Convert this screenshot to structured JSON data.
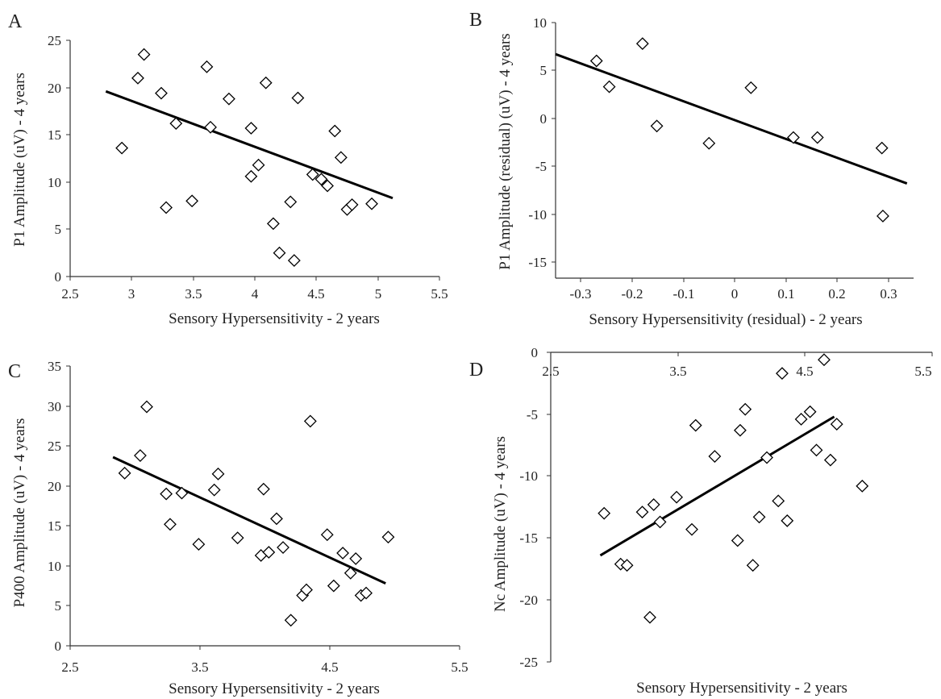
{
  "chart_data": [
    {
      "panel": "A",
      "type": "scatter",
      "xlabel": "Sensory Hypersensitivity - 2 years",
      "ylabel": "P1 Amplitude (uV) - 4 years",
      "xlim": [
        2.5,
        5.5
      ],
      "ylim": [
        0,
        25
      ],
      "xticks": [
        "2.5",
        "3",
        "3.5",
        "4",
        "4.5",
        "5",
        "5.5"
      ],
      "yticks": [
        "0",
        "5",
        "10",
        "15",
        "20",
        "25"
      ],
      "grid": false,
      "marker": "open-diamond",
      "points": [
        [
          2.92,
          13.6
        ],
        [
          3.05,
          21.0
        ],
        [
          3.1,
          23.5
        ],
        [
          3.24,
          19.4
        ],
        [
          3.28,
          7.3
        ],
        [
          3.36,
          16.2
        ],
        [
          3.49,
          8.0
        ],
        [
          3.61,
          22.2
        ],
        [
          3.64,
          15.8
        ],
        [
          3.79,
          18.8
        ],
        [
          3.97,
          15.7
        ],
        [
          3.97,
          10.6
        ],
        [
          4.03,
          11.8
        ],
        [
          4.09,
          20.5
        ],
        [
          4.15,
          5.6
        ],
        [
          4.2,
          2.5
        ],
        [
          4.29,
          7.9
        ],
        [
          4.32,
          1.7
        ],
        [
          4.35,
          18.9
        ],
        [
          4.47,
          10.8
        ],
        [
          4.54,
          10.3
        ],
        [
          4.59,
          9.6
        ],
        [
          4.65,
          15.4
        ],
        [
          4.7,
          12.6
        ],
        [
          4.75,
          7.1
        ],
        [
          4.79,
          7.6
        ],
        [
          4.95,
          7.7
        ]
      ],
      "trendline": [
        [
          2.79,
          19.6
        ],
        [
          5.12,
          8.3
        ]
      ]
    },
    {
      "panel": "B",
      "type": "scatter",
      "xlabel": "Sensory Hypersensitivity (residual) - 2 years",
      "ylabel": "P1 Amplitude (residual) (uV) - 4 years",
      "xlim": [
        -0.35,
        0.35
      ],
      "ylim": [
        -15,
        10
      ],
      "xticks": [
        "-0.3",
        "-0.2",
        "-0.1",
        "0",
        "0.1",
        "0.2",
        "0.3"
      ],
      "yticks": [
        "-15",
        "-10",
        "-5",
        "0",
        "5",
        "10"
      ],
      "x_axis_crosses_at": -17,
      "grid": false,
      "marker": "open-diamond",
      "points": [
        [
          -0.27,
          6.0
        ],
        [
          -0.245,
          3.3
        ],
        [
          -0.18,
          7.8
        ],
        [
          -0.152,
          -0.8
        ],
        [
          -0.05,
          -2.6
        ],
        [
          0.032,
          3.2
        ],
        [
          0.115,
          -2.0
        ],
        [
          0.162,
          -2.0
        ],
        [
          0.288,
          -3.1
        ],
        [
          0.29,
          -10.2
        ]
      ],
      "trendline": [
        [
          -0.35,
          6.7
        ],
        [
          0.337,
          -6.8
        ]
      ]
    },
    {
      "panel": "C",
      "type": "scatter",
      "xlabel": "Sensory Hypersensitivity - 2 years",
      "ylabel": "P400 Amplitude (uV) - 4 years",
      "xlim": [
        2.5,
        5.5
      ],
      "ylim": [
        0,
        35
      ],
      "xticks": [
        "2.5",
        "3.5",
        "4.5",
        "5.5"
      ],
      "yticks": [
        "0",
        "5",
        "10",
        "15",
        "20",
        "25",
        "30",
        "35"
      ],
      "grid": false,
      "marker": "open-diamond",
      "points": [
        [
          2.92,
          21.6
        ],
        [
          3.04,
          23.8
        ],
        [
          3.09,
          29.9
        ],
        [
          3.24,
          19.0
        ],
        [
          3.27,
          15.2
        ],
        [
          3.36,
          19.1
        ],
        [
          3.49,
          12.7
        ],
        [
          3.61,
          19.5
        ],
        [
          3.64,
          21.5
        ],
        [
          3.79,
          13.5
        ],
        [
          3.97,
          11.3
        ],
        [
          3.99,
          19.6
        ],
        [
          4.03,
          11.7
        ],
        [
          4.09,
          15.9
        ],
        [
          4.14,
          12.3
        ],
        [
          4.2,
          3.2
        ],
        [
          4.29,
          6.3
        ],
        [
          4.32,
          7.0
        ],
        [
          4.35,
          28.1
        ],
        [
          4.48,
          13.9
        ],
        [
          4.53,
          7.5
        ],
        [
          4.6,
          11.6
        ],
        [
          4.66,
          9.1
        ],
        [
          4.7,
          10.9
        ],
        [
          4.74,
          6.3
        ],
        [
          4.78,
          6.6
        ],
        [
          4.95,
          13.6
        ]
      ],
      "trendline": [
        [
          2.83,
          23.6
        ],
        [
          4.93,
          7.8
        ]
      ]
    },
    {
      "panel": "D",
      "type": "scatter",
      "xlabel": "Sensory Hypersensitivity - 2 years",
      "ylabel": "Nc Amplitude (uV) - 4 years",
      "xlim": [
        2.5,
        5.5
      ],
      "ylim": [
        -25,
        0
      ],
      "xticks": [
        "2.5",
        "3.5",
        "4.5",
        "5.5"
      ],
      "yticks": [
        "-25",
        "-20",
        "-15",
        "-10",
        "-5",
        "0"
      ],
      "x_axis_position": "top",
      "grid": false,
      "marker": "open-diamond",
      "points": [
        [
          2.92,
          -13.0
        ],
        [
          3.05,
          -17.1
        ],
        [
          3.1,
          -17.2
        ],
        [
          3.22,
          -12.9
        ],
        [
          3.28,
          -21.4
        ],
        [
          3.31,
          -12.3
        ],
        [
          3.36,
          -13.7
        ],
        [
          3.49,
          -11.7
        ],
        [
          3.61,
          -14.3
        ],
        [
          3.64,
          -5.9
        ],
        [
          3.79,
          -8.4
        ],
        [
          3.97,
          -15.2
        ],
        [
          3.99,
          -6.3
        ],
        [
          4.03,
          -4.6
        ],
        [
          4.09,
          -17.2
        ],
        [
          4.14,
          -13.3
        ],
        [
          4.2,
          -8.5
        ],
        [
          4.29,
          -12.0
        ],
        [
          4.32,
          -1.7
        ],
        [
          4.36,
          -13.6
        ],
        [
          4.47,
          -5.4
        ],
        [
          4.54,
          -4.8
        ],
        [
          4.59,
          -7.9
        ],
        [
          4.65,
          -0.6
        ],
        [
          4.7,
          -8.7
        ],
        [
          4.75,
          -5.8
        ],
        [
          4.95,
          -10.8
        ]
      ],
      "trendline": [
        [
          2.89,
          -16.4
        ],
        [
          4.73,
          -5.2
        ]
      ]
    }
  ],
  "panels": {
    "A": {
      "letter": "A",
      "xlabel": "Sensory Hypersensitivity - 2 years",
      "ylabel": "P1 Amplitude (uV) - 4 years",
      "xticks": [
        "2.5",
        "3",
        "3.5",
        "4",
        "4.5",
        "5",
        "5.5"
      ],
      "yticks": [
        "0",
        "5",
        "10",
        "15",
        "20",
        "25"
      ]
    },
    "B": {
      "letter": "B",
      "xlabel": "Sensory Hypersensitivity (residual) - 2 years",
      "ylabel": "P1 Amplitude (residual) (uV) - 4 years",
      "xticks": [
        "-0.3",
        "-0.2",
        "-0.1",
        "0",
        "0.1",
        "0.2",
        "0.3"
      ],
      "yticks": [
        "-15",
        "-10",
        "-5",
        "0",
        "5",
        "10"
      ]
    },
    "C": {
      "letter": "C",
      "xlabel": "Sensory Hypersensitivity - 2 years",
      "ylabel": "P400 Amplitude (uV) - 4 years",
      "xticks": [
        "2.5",
        "3.5",
        "4.5",
        "5.5"
      ],
      "yticks": [
        "0",
        "5",
        "10",
        "15",
        "20",
        "25",
        "30",
        "35"
      ]
    },
    "D": {
      "letter": "D",
      "xlabel": "Sensory Hypersensitivity - 2 years",
      "ylabel": "Nc Amplitude (uV) - 4 years",
      "xticks": [
        "2.5",
        "3.5",
        "4.5",
        "5.5"
      ],
      "yticks": [
        "-25",
        "-20",
        "-15",
        "-10",
        "-5",
        "0"
      ]
    }
  },
  "style": {
    "axis_color": "#333333",
    "marker_color": "#000000",
    "trendline_color": "#000000",
    "background": "#ffffff"
  }
}
